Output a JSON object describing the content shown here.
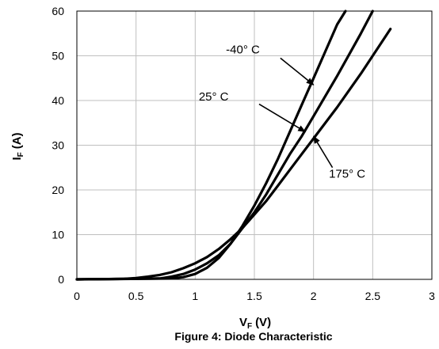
{
  "chart_data": {
    "type": "line",
    "caption": "Figure 4: Diode Characteristic",
    "xlabel": {
      "main": "V",
      "sub": "F",
      "unit": "(V)"
    },
    "ylabel": {
      "main": "I",
      "sub": "F",
      "unit": "(A)"
    },
    "xlim": [
      0,
      3
    ],
    "ylim": [
      0,
      60
    ],
    "xticks": [
      0,
      0.5,
      1,
      1.5,
      2,
      2.5,
      3
    ],
    "xtick_labels": [
      "0",
      "0.5",
      "1",
      "1.5",
      "2",
      "2.5",
      "3"
    ],
    "yticks": [
      0,
      10,
      20,
      30,
      40,
      50,
      60
    ],
    "ytick_labels": [
      "0",
      "10",
      "20",
      "30",
      "40",
      "50",
      "60"
    ],
    "grid": true,
    "line_color": "#000000",
    "series": [
      {
        "name": "-40° C",
        "x": [
          0,
          0.8,
          0.9,
          1.0,
          1.1,
          1.2,
          1.3,
          1.4,
          1.5,
          1.6,
          1.7,
          1.8,
          1.9,
          2.0,
          2.1,
          2.2,
          2.27
        ],
        "y": [
          0,
          0.2,
          0.5,
          1.2,
          2.6,
          4.8,
          8.0,
          12.0,
          16.5,
          21.5,
          27.0,
          33.0,
          39.0,
          45.0,
          51.0,
          57.0,
          60.0
        ]
      },
      {
        "name": "25° C",
        "x": [
          0,
          0.7,
          0.8,
          0.9,
          1.0,
          1.1,
          1.2,
          1.3,
          1.4,
          1.5,
          1.6,
          1.7,
          1.8,
          1.9,
          2.0,
          2.2,
          2.4,
          2.5
        ],
        "y": [
          0,
          0.2,
          0.6,
          1.2,
          2.2,
          3.6,
          5.4,
          8.0,
          11.5,
          15.0,
          19.0,
          23.5,
          28.0,
          32.0,
          36.5,
          45.5,
          55.0,
          60.0
        ]
      },
      {
        "name": "175° C",
        "x": [
          0,
          0.4,
          0.5,
          0.6,
          0.7,
          0.8,
          0.9,
          1.0,
          1.1,
          1.2,
          1.3,
          1.4,
          1.5,
          1.6,
          1.7,
          1.8,
          1.9,
          2.0,
          2.2,
          2.4,
          2.6,
          2.65
        ],
        "y": [
          0,
          0.1,
          0.3,
          0.6,
          1.0,
          1.6,
          2.5,
          3.6,
          5.0,
          6.8,
          9.0,
          11.5,
          14.5,
          17.5,
          21.0,
          24.5,
          28.0,
          31.5,
          38.5,
          46.0,
          54.0,
          56.0
        ]
      }
    ],
    "annotations": [
      {
        "text": "-40° C",
        "label_x": 1.26,
        "label_y": 50.5,
        "arrow_from": [
          1.72,
          49.5
        ],
        "arrow_to": [
          2.0,
          43.5
        ]
      },
      {
        "text": "25° C",
        "label_x": 1.03,
        "label_y": 40.0,
        "arrow_from": [
          1.54,
          39.2
        ],
        "arrow_to": [
          1.93,
          33.0
        ]
      },
      {
        "text": "175° C",
        "label_x": 2.13,
        "label_y": 22.7,
        "arrow_from": [
          2.16,
          25.0
        ],
        "arrow_to": [
          2.0,
          32.0
        ]
      }
    ]
  }
}
